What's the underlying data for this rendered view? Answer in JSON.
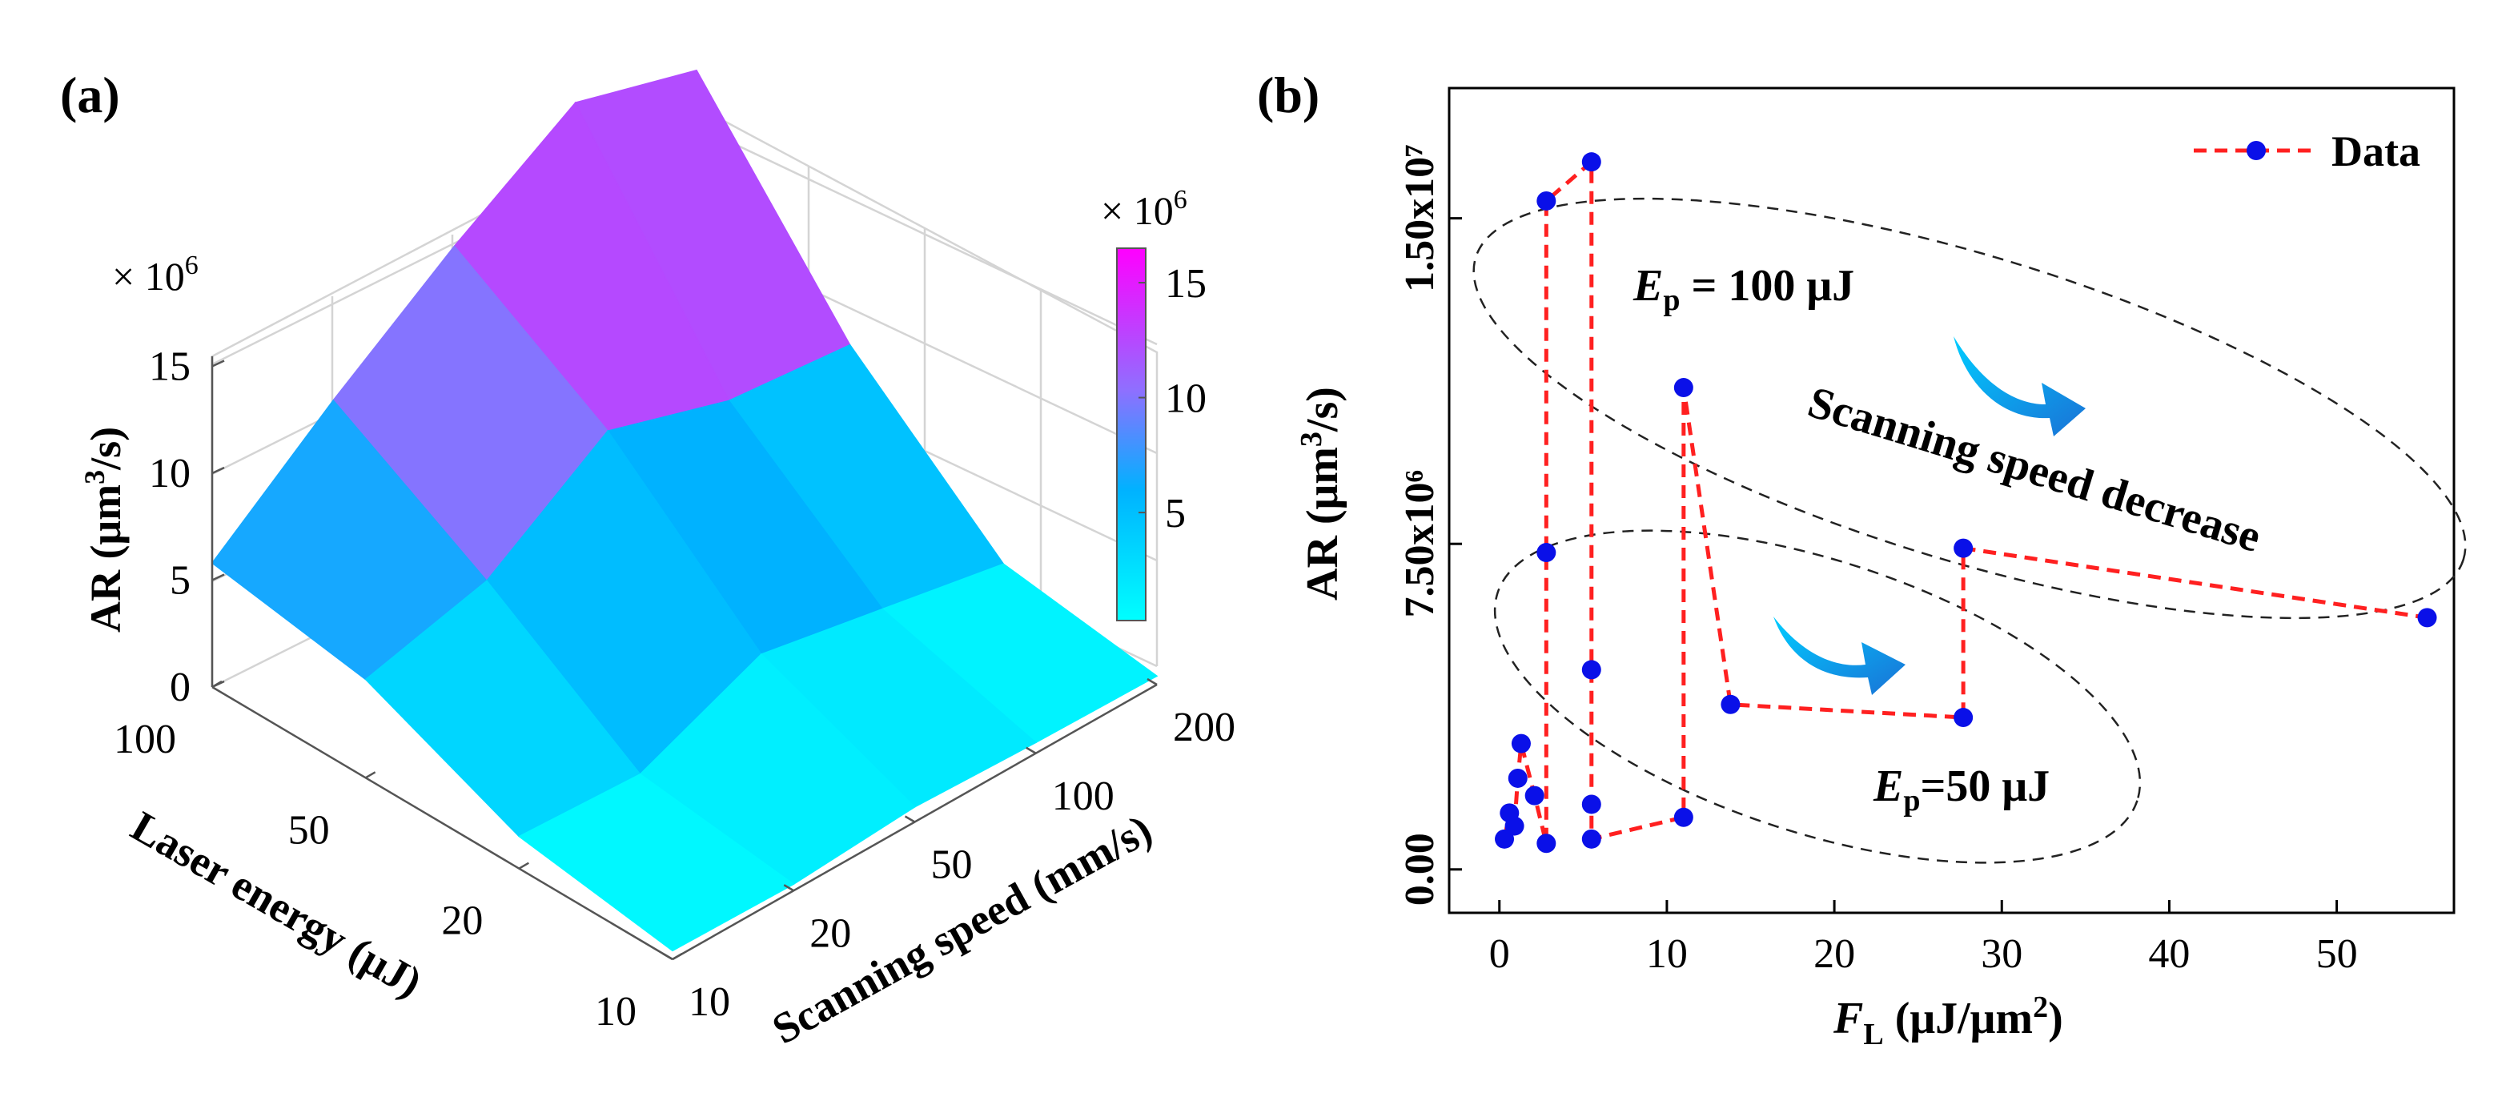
{
  "chart_data": [
    {
      "panel": "(a)",
      "type": "surface3d",
      "multiplier_label": "× 10",
      "multiplier_exp": "6",
      "zlabel": {
        "main": "AR (μm",
        "sup": "3",
        "tail": "/s)"
      },
      "z_ticks": [
        "0",
        "5",
        "10",
        "15"
      ],
      "x_axis": {
        "label": "Laser energy (μJ)",
        "ticks": [
          "100",
          "50",
          "20",
          "10"
        ]
      },
      "y_axis": {
        "label": "Scanning speed (mm/s)",
        "ticks": [
          "10",
          "20",
          "50",
          "100",
          "200"
        ]
      },
      "zlim": [
        0,
        16
      ],
      "grid": true,
      "colorbar": {
        "multiplier_label": "× 10",
        "multiplier_exp": "6",
        "ticks": [
          "5",
          "10",
          "15"
        ],
        "range": [
          0.3,
          16.5
        ],
        "colors": [
          "#00ffff",
          "#ff00ff"
        ]
      },
      "laser_energy": [
        100,
        50,
        20,
        10
      ],
      "scanning_speed": [
        10,
        20,
        50,
        100,
        200
      ],
      "ar_values_1e6": [
        [
          5.8,
          10.2,
          14.2,
          17.7,
          16.0
        ],
        [
          4.6,
          6.0,
          9.8,
          8.0,
          7.4
        ],
        [
          1.5,
          1.2,
          3.6,
          2.5,
          1.4
        ],
        [
          0.4,
          0.3,
          0.7,
          0.5,
          0.4
        ]
      ]
    },
    {
      "panel": "(b)",
      "type": "line",
      "xlabel": {
        "main": "F",
        "sub": "L",
        "tail": " (μJ/μm",
        "sup": "2",
        "end": ")"
      },
      "ylabel": {
        "main": "AR (μm",
        "sup": "3",
        "tail": "/s)"
      },
      "xlim": [
        -3,
        57
      ],
      "ylim": [
        -1000000,
        18000000
      ],
      "x_ticks": [
        "0",
        "10",
        "20",
        "30",
        "40",
        "50"
      ],
      "y_ticks": [
        "0.00",
        "7.50x10⁶",
        "1.50x10⁷"
      ],
      "legend": {
        "label": "Data",
        "position": "top-right"
      },
      "series": [
        {
          "name": "Data",
          "color": "#ff2020",
          "marker_color": "#0a10e8",
          "x": [
            0.3,
            0.6,
            0.9,
            1.1,
            1.3,
            2.1,
            2.8,
            2.8,
            2.8,
            5.5,
            5.5,
            5.5,
            5.5,
            11.0,
            11.0,
            13.8,
            27.7,
            27.7,
            55.4
          ],
          "y": [
            700000,
            1300000,
            1000000,
            2100000,
            2900000,
            1700000,
            600000,
            7300000,
            15400000,
            16300000,
            4600000,
            1500000,
            700000,
            1200000,
            11100000,
            3800000,
            3500000,
            7400000,
            5800000
          ]
        }
      ],
      "annotations": {
        "ep100": {
          "main": "E",
          "sub": "p",
          "rest": " = 100  μJ"
        },
        "ep50": {
          "main": "E",
          "sub": "p",
          "rest": "=50  μJ"
        },
        "trend": "Scanning speed decrease"
      }
    }
  ]
}
